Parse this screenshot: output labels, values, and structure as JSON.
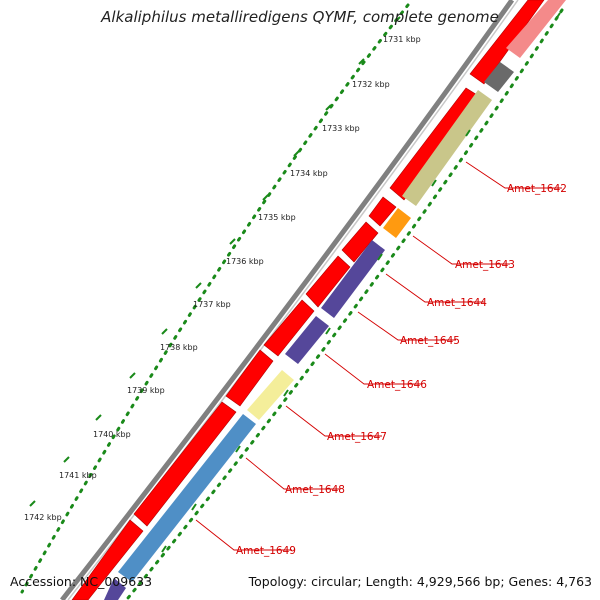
{
  "title": "Alkaliphilus metalliredigens QYMF, complete genome",
  "footer": {
    "accession": "Accession: NC_009633",
    "summary": "Topology: circular; Length: 4,929,566 bp; Genes: 4,763"
  },
  "kbp_ticks": [
    "1731 kbp",
    "1732 kbp",
    "1733 kbp",
    "1734 kbp",
    "1735 kbp",
    "1736 kbp",
    "1737 kbp",
    "1738 kbp",
    "1739 kbp",
    "1740 kbp",
    "1741 kbp",
    "1742 kbp"
  ],
  "gene_labels": [
    "Amet_1642",
    "Amet_1643",
    "Amet_1644",
    "Amet_1645",
    "Amet_1646",
    "Amet_1647",
    "Amet_1648",
    "Amet_1649"
  ],
  "colors": {
    "backbone": "#808080",
    "forward": "#ff0000",
    "tick_dots": "#1a8a1a",
    "label_text": "#d40000",
    "olive": "#c9c68a",
    "orange": "#ff9a10",
    "purple": "#55479a",
    "light_yellow": "#f4ee9a",
    "steel_blue": "#4f8fc6",
    "gray": "#6a6a6a",
    "pink": "#f48a8a"
  }
}
